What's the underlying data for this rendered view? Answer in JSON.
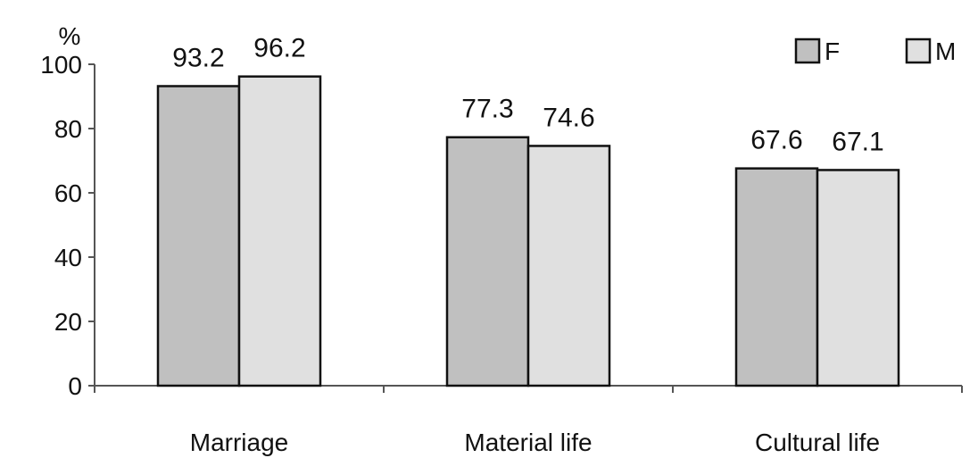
{
  "chart_data": {
    "type": "bar",
    "unit_label": "%",
    "categories": [
      "Marriage",
      "Material life",
      "Cultural life"
    ],
    "series": [
      {
        "name": "F",
        "values": [
          93.2,
          77.3,
          67.6
        ],
        "color": "#c0c0c0"
      },
      {
        "name": "M",
        "values": [
          96.2,
          74.6,
          67.1
        ],
        "color": "#e0e0e0"
      }
    ],
    "data_labels": [
      [
        "93.2",
        "77.3",
        "67.6"
      ],
      [
        "96.2",
        "74.6",
        "67.1"
      ]
    ],
    "y_ticks": [
      "0",
      "20",
      "40",
      "60",
      "80",
      "100"
    ],
    "ylim": [
      0,
      100
    ],
    "grid": false,
    "legend_position": "top-right",
    "title": "",
    "xlabel": "",
    "ylabel": ""
  }
}
